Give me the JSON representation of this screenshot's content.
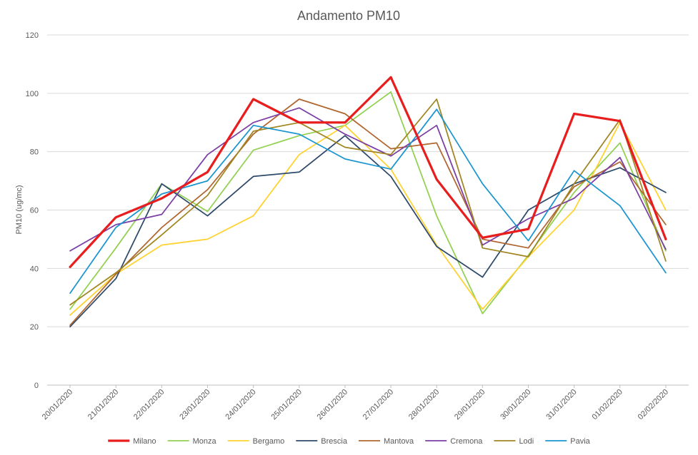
{
  "chart_data": {
    "type": "line",
    "title": "Andamento PM10",
    "xlabel": "",
    "ylabel": "PM10 (ug/mc)",
    "ylim": [
      0,
      120
    ],
    "yticks": [
      "0",
      "20",
      "40",
      "60",
      "80",
      "100",
      "120"
    ],
    "grid": true,
    "legend_position": "bottom",
    "categories": [
      "20/01/2020",
      "21/01/2020",
      "22/01/2020",
      "23/01/2020",
      "24/01/2020",
      "25/01/2020",
      "26/01/2020",
      "27/01/2020",
      "28/01/2020",
      "29/01/2020",
      "30/01/2020",
      "31/01/2020",
      "01/02/2020",
      "02/02/2020"
    ],
    "series": [
      {
        "name": "Monza",
        "color": "#92d050",
        "values": [
          26,
          47,
          69,
          59.5,
          80.5,
          85.5,
          89,
          100.5,
          58,
          24.5,
          44.5,
          66,
          83,
          46
        ]
      },
      {
        "name": "Bergamo",
        "color": "#ffd22e",
        "values": [
          24,
          38,
          48,
          50,
          58,
          79,
          89,
          74,
          48,
          26,
          44,
          60,
          90,
          60
        ]
      },
      {
        "name": "Brescia",
        "color": "#2e4a6b",
        "values": [
          20,
          36.5,
          69,
          58,
          71.5,
          73,
          85.5,
          71.5,
          47.5,
          37,
          60,
          69,
          74.5,
          66
        ]
      },
      {
        "name": "Mantova",
        "color": "#b0662f",
        "values": [
          20.5,
          38,
          54,
          67,
          86,
          98,
          93,
          81,
          83,
          50,
          47,
          68,
          76.5,
          55
        ]
      },
      {
        "name": "Cremona",
        "color": "#7a3ea5",
        "values": [
          46,
          55,
          58.5,
          79,
          90,
          95,
          86,
          78.5,
          89,
          48,
          57,
          64,
          78,
          46.5
        ]
      },
      {
        "name": "Lodi",
        "color": "#a08520",
        "values": [
          27.5,
          38.5,
          51.5,
          65,
          87,
          90,
          81.5,
          79,
          98,
          47,
          44,
          69,
          91,
          42.5
        ]
      },
      {
        "name": "Pavia",
        "color": "#1b95d0",
        "values": [
          31.5,
          54,
          65.5,
          70,
          89,
          86,
          77.5,
          74,
          94.5,
          69,
          49.5,
          73.5,
          61.5,
          38.5
        ]
      },
      {
        "name": "Milano",
        "color": "#e81e1e",
        "values": [
          40.5,
          57.5,
          64,
          73,
          98,
          90,
          90,
          105.5,
          70.5,
          50.5,
          53.5,
          93,
          90.5,
          50
        ]
      }
    ],
    "legend_order": [
      "Milano",
      "Monza",
      "Bergamo",
      "Brescia",
      "Mantova",
      "Cremona",
      "Lodi",
      "Pavia"
    ]
  }
}
